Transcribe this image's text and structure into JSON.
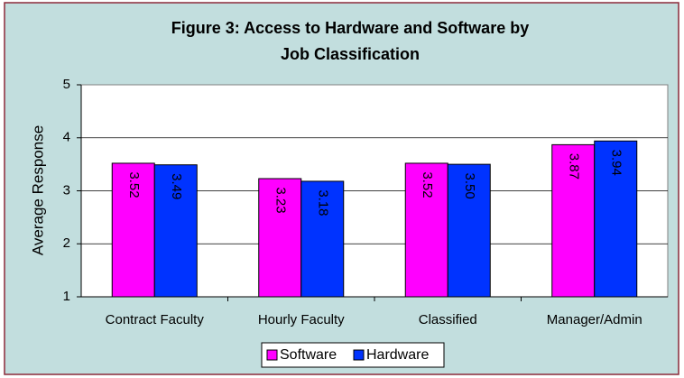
{
  "chart_data": {
    "type": "bar",
    "title": [
      "Figure 3: Access to Hardware and Software by",
      "Job Classification"
    ],
    "y_label": "Average Response",
    "categories": [
      "Contract Faculty",
      "Hourly Faculty",
      "Classified",
      "Manager/Admin"
    ],
    "series": [
      {
        "name": "Software",
        "color": "#ff00ff",
        "values": [
          3.52,
          3.23,
          3.52,
          3.87
        ],
        "value_labels": [
          "3.52",
          "3.23",
          "3.52",
          "3.87"
        ]
      },
      {
        "name": "Hardware",
        "color": "#0033ff",
        "values": [
          3.49,
          3.18,
          3.5,
          3.94
        ],
        "value_labels": [
          "3.49",
          "3.18",
          "3.50",
          "3.94"
        ]
      }
    ],
    "ylim": [
      1,
      5
    ],
    "yticks": [
      1,
      2,
      3,
      4,
      5
    ],
    "grid": true,
    "legend": "bottom"
  }
}
